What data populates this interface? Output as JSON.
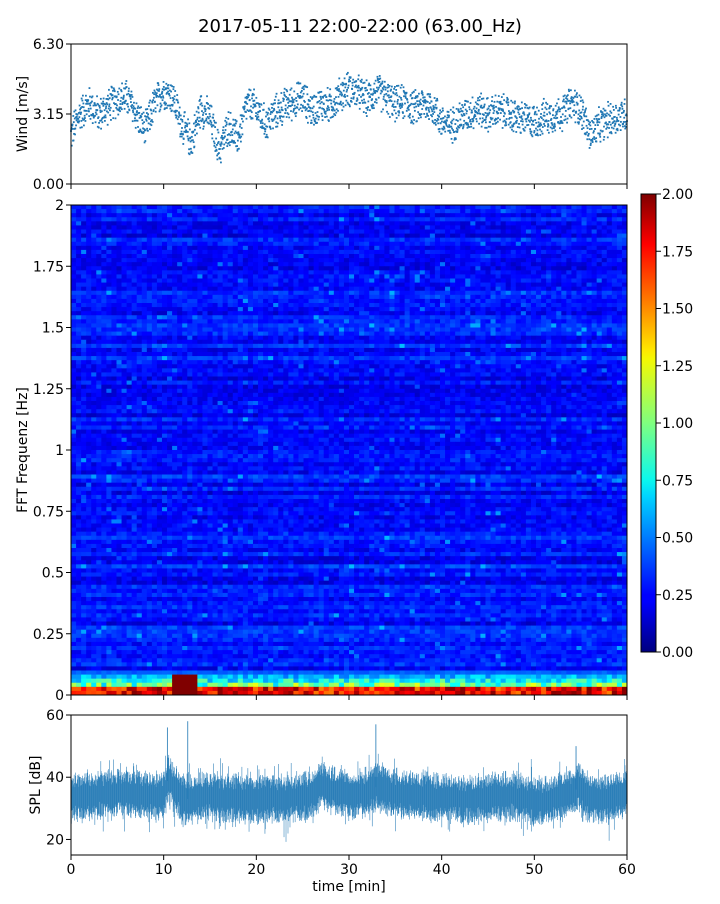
{
  "title": "2017-05-11 22:00-22:00 (63.00_Hz)",
  "chart_data": [
    {
      "type": "scatter",
      "panel": "wind",
      "ylabel": "Wind [m/s]",
      "xlim": [
        0,
        60
      ],
      "ylim": [
        0,
        6.3
      ],
      "yticks": [
        "0.00",
        "3.15",
        "6.30"
      ],
      "color": "#1f77b4",
      "grid": false,
      "trend_x": [
        0,
        1,
        2,
        3,
        4,
        5,
        6,
        7,
        8,
        9,
        10,
        11,
        12,
        13,
        14,
        15,
        16,
        17,
        18,
        19,
        20,
        21,
        22,
        23,
        24,
        25,
        26,
        27,
        28,
        29,
        30,
        31,
        32,
        33,
        34,
        35,
        36,
        37,
        38,
        39,
        40,
        41,
        42,
        43,
        44,
        45,
        46,
        47,
        48,
        49,
        50,
        51,
        52,
        53,
        54,
        55,
        56,
        57,
        58,
        59,
        60
      ],
      "trend_y": [
        2.2,
        3.2,
        3.6,
        3.1,
        3.5,
        3.8,
        3.9,
        3.2,
        2.4,
        3.6,
        4.2,
        3.9,
        2.6,
        1.9,
        3.4,
        3.0,
        1.5,
        2.6,
        2.0,
        3.6,
        3.4,
        2.7,
        3.2,
        3.5,
        3.7,
        3.9,
        3.3,
        3.6,
        3.5,
        4.0,
        4.3,
        4.1,
        3.8,
        4.2,
        3.9,
        3.6,
        3.7,
        3.4,
        3.6,
        3.5,
        2.8,
        2.6,
        3.0,
        3.2,
        3.4,
        3.1,
        3.3,
        3.2,
        3.0,
        2.9,
        2.8,
        3.0,
        3.1,
        3.2,
        3.6,
        3.4,
        2.2,
        2.6,
        2.9,
        3.0,
        3.2
      ],
      "spread": 0.75
    },
    {
      "type": "heatmap",
      "panel": "spectrogram",
      "ylabel": "FFT Frequenz [Hz]",
      "xlim": [
        0,
        60
      ],
      "ylim": [
        0,
        2
      ],
      "yticks": [
        "0",
        "0.25",
        "0.5",
        "0.75",
        "1",
        "1.25",
        "1.5",
        "1.75",
        "2"
      ],
      "colormap": "jet",
      "colorbar": {
        "range": [
          0,
          2
        ],
        "ticks": [
          "0.00",
          "0.25",
          "0.50",
          "0.75",
          "1.00",
          "1.25",
          "1.50",
          "1.75",
          "2.00"
        ]
      },
      "background_level": 0.28,
      "low_band_max_hz": 0.1,
      "hotspot": {
        "x_range": [
          10.7,
          13.5
        ],
        "level": 2.0
      }
    },
    {
      "type": "area",
      "panel": "spl",
      "ylabel": "SPL [dB]",
      "xlabel": "time [min]",
      "xlim": [
        0,
        60
      ],
      "ylim": [
        15,
        60
      ],
      "yticks": [
        "20",
        "40",
        "60"
      ],
      "xticks": [
        "0",
        "10",
        "20",
        "30",
        "40",
        "50",
        "60"
      ],
      "color": "#1f77b4",
      "center_x": [
        0,
        2,
        4,
        6,
        8,
        10,
        10.5,
        11,
        12,
        13,
        15,
        17,
        20,
        23,
        26,
        27,
        28,
        30,
        32,
        33,
        34,
        36,
        38,
        40,
        42,
        44,
        46,
        48,
        50,
        52,
        54,
        55,
        56,
        58,
        60
      ],
      "center_y": [
        33,
        34,
        35,
        35,
        34,
        34,
        40,
        37,
        33,
        33,
        34,
        33,
        33,
        33,
        34,
        38,
        36,
        34,
        35,
        37,
        36,
        34,
        34,
        33,
        33,
        33,
        34,
        34,
        32,
        33,
        35,
        37,
        33,
        33,
        35
      ],
      "half_width": 5.5,
      "spike_x": [
        10.4,
        12.6,
        32.9,
        54.5
      ],
      "spike_y": [
        56,
        58,
        57,
        50
      ]
    }
  ]
}
